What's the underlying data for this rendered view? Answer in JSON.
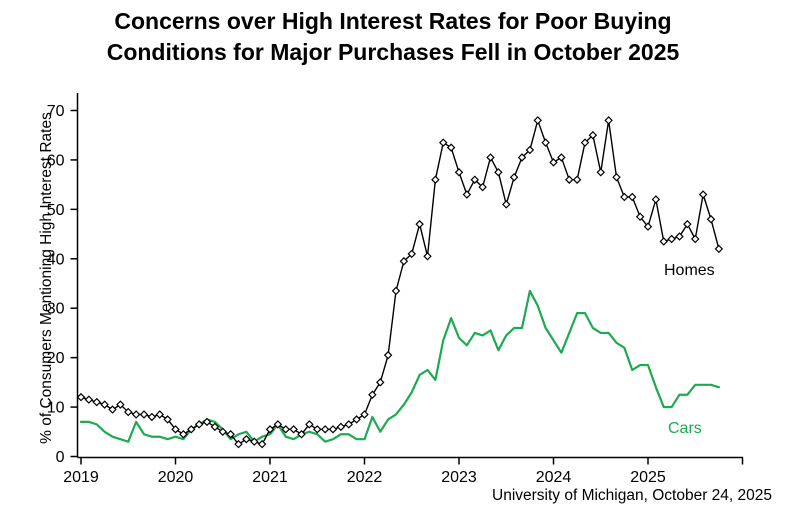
{
  "title": {
    "line1": "Concerns over High Interest Rates for Poor Buying",
    "line2": "Conditions for Major Purchases Fell in October 2025"
  },
  "source_note": "University of Michigan, October 24, 2025",
  "chart_data": {
    "type": "line",
    "title": "Concerns over High Interest Rates for Poor Buying Conditions for Major Purchases Fell in October 2025",
    "xlabel": "",
    "ylabel": "% of Consumers Mentioning High Interest Rates",
    "x_start": "2019-01",
    "x_end": "2025-10",
    "x_frequency": "monthly",
    "x_tick_labels": [
      "2019",
      "2020",
      "2021",
      "2022",
      "2023",
      "2024",
      "2025"
    ],
    "y_ticks": [
      0,
      10,
      20,
      30,
      40,
      50,
      60,
      70
    ],
    "ylim": [
      0,
      73
    ],
    "grid": false,
    "legend_position": "inline-labels",
    "series": [
      {
        "name": "Homes",
        "color": "#000000",
        "marker": "open-diamond",
        "values": [
          12,
          11.5,
          11,
          10.5,
          9.5,
          10.5,
          9,
          8.5,
          8.5,
          8,
          8.5,
          7.5,
          5.5,
          4.5,
          5.5,
          6.5,
          7,
          6,
          5,
          4.5,
          2.5,
          3.5,
          3,
          2.5,
          5.5,
          6.5,
          5.5,
          5.5,
          4.5,
          6.5,
          5.5,
          5.5,
          5.5,
          6,
          6.5,
          7.5,
          8.5,
          12.5,
          15,
          20.5,
          33.5,
          39.5,
          41,
          47,
          40.5,
          56,
          63.5,
          62.5,
          57.5,
          53,
          56,
          54.5,
          60.5,
          57.5,
          51,
          56.5,
          60.5,
          62,
          68,
          63.5,
          59.5,
          60.5,
          56,
          56,
          63.5,
          65,
          57.5,
          68,
          56.5,
          52.5,
          52.5,
          48.5,
          46.5,
          52,
          43.5,
          44,
          44.5,
          47,
          44,
          53,
          48,
          42
        ]
      },
      {
        "name": "Cars",
        "color": "#1eaa50",
        "marker": "none",
        "values": [
          7,
          7,
          6.5,
          5,
          4,
          3.5,
          3,
          7,
          4.5,
          4,
          4,
          3.5,
          4,
          3.5,
          5.5,
          6.5,
          7.5,
          7,
          5.5,
          3.5,
          4.5,
          5,
          3,
          4,
          4.5,
          6.5,
          4,
          3.5,
          4.5,
          5,
          4.5,
          3,
          3.5,
          4.5,
          4.5,
          3.5,
          3.5,
          8,
          5,
          7.5,
          8.5,
          10.5,
          13,
          16.5,
          17.5,
          15.5,
          23.5,
          28,
          24,
          22.5,
          25,
          24.5,
          25.5,
          21.5,
          24.5,
          26,
          26,
          33.5,
          30.5,
          26,
          23.5,
          21,
          25,
          29,
          29,
          26,
          25,
          25,
          23,
          22,
          17.5,
          18.5,
          18.5,
          14,
          10,
          10,
          12.5,
          12.5,
          14.5,
          14.5,
          14.5,
          14
        ]
      }
    ]
  }
}
